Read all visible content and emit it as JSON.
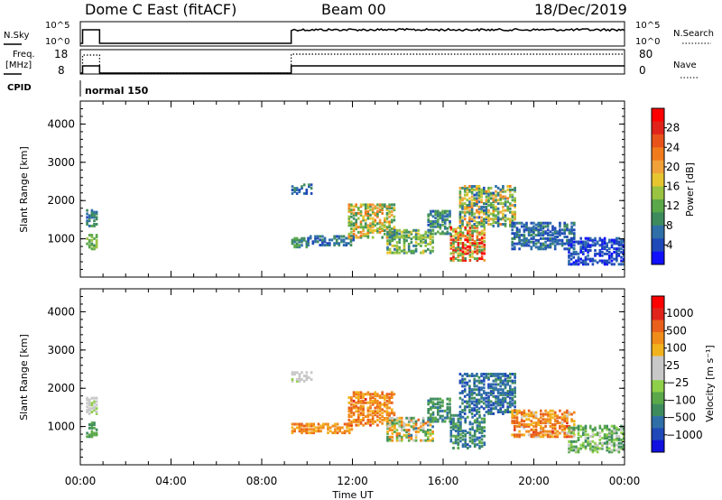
{
  "header": {
    "title_left": "Dome C East (fitACF)",
    "title_mid": "Beam 00",
    "title_right": "18/Dec/2019"
  },
  "status_panels": {
    "nsky": {
      "label": "N.Sky",
      "right_label": "N.Search",
      "ticks": [
        "10^5",
        "10^0"
      ],
      "right_ticks": [
        "10^5",
        "10^0"
      ]
    },
    "freq": {
      "label_line1": "Freq.",
      "label_line2": "[MHz]",
      "ticks": [
        "18",
        "8"
      ],
      "right_label": "Nave",
      "right_ticks": [
        "80",
        "0"
      ]
    },
    "cpid": {
      "label": "CPID",
      "mode_text": "normal 150"
    }
  },
  "chart_data": [
    {
      "type": "heatmap",
      "name": "power",
      "ylabel": "Slant Range [km]",
      "yticks": [
        "1000",
        "2000",
        "3000",
        "4000"
      ],
      "ylim": [
        0,
        4600
      ],
      "xlim_hours": [
        0,
        24
      ],
      "colorbar": {
        "label": "Power [dB]",
        "ticks": [
          "4",
          "8",
          "12",
          "16",
          "20",
          "24",
          "28"
        ],
        "colors": [
          "#1010ff",
          "#1f49b8",
          "#2f6fa8",
          "#3e8c5e",
          "#5aa84a",
          "#99c341",
          "#e6c531",
          "#f0a13a",
          "#f07b1d",
          "#e8521b",
          "#e0231b",
          "#ff0000"
        ]
      },
      "echo_regions": [
        {
          "t0": 0.25,
          "t1": 0.7,
          "r0": 1300,
          "r1": 1750,
          "level": [
            0.15,
            0.35
          ]
        },
        {
          "t0": 0.25,
          "t1": 0.75,
          "r0": 700,
          "r1": 1100,
          "level": [
            0.25,
            0.5
          ]
        },
        {
          "t0": 9.3,
          "t1": 10.2,
          "r0": 2150,
          "r1": 2400,
          "level": [
            0.1,
            0.3
          ]
        },
        {
          "t0": 9.3,
          "t1": 10.0,
          "r0": 750,
          "r1": 1000,
          "level": [
            0.2,
            0.4
          ]
        },
        {
          "t0": 10.0,
          "t1": 12.0,
          "r0": 800,
          "r1": 1050,
          "level": [
            0.1,
            0.3
          ]
        },
        {
          "t0": 11.8,
          "t1": 13.8,
          "r0": 1000,
          "r1": 1900,
          "level": [
            0.25,
            0.75
          ]
        },
        {
          "t0": 13.5,
          "t1": 15.5,
          "r0": 600,
          "r1": 1200,
          "level": [
            0.2,
            0.55
          ]
        },
        {
          "t0": 15.3,
          "t1": 16.3,
          "r0": 1100,
          "r1": 1700,
          "level": [
            0.15,
            0.4
          ]
        },
        {
          "t0": 16.3,
          "t1": 17.8,
          "r0": 400,
          "r1": 1300,
          "level": [
            0.3,
            1.0
          ]
        },
        {
          "t0": 16.7,
          "t1": 19.2,
          "r0": 1300,
          "r1": 2350,
          "level": [
            0.15,
            0.7
          ]
        },
        {
          "t0": 19.0,
          "t1": 21.8,
          "r0": 700,
          "r1": 1400,
          "level": [
            0.1,
            0.3
          ]
        },
        {
          "t0": 21.5,
          "t1": 24.0,
          "r0": 300,
          "r1": 1000,
          "level": [
            0.05,
            0.2
          ]
        }
      ]
    },
    {
      "type": "heatmap",
      "name": "velocity",
      "ylabel": "Slant Range [km]",
      "yticks": [
        "1000",
        "2000",
        "3000",
        "4000"
      ],
      "ylim": [
        0,
        4600
      ],
      "xlim_hours": [
        0,
        24
      ],
      "colorbar": {
        "label": "Velocity  [m s⁻¹]",
        "ticks": [
          "1000",
          "500",
          "100",
          "25",
          "−25",
          "−100",
          "−500",
          "−1000"
        ],
        "colors": [
          "#1010e0",
          "#1f49b8",
          "#2f6fa8",
          "#3e8c5e",
          "#5aa84a",
          "#8fd04a",
          "#c8c8c8",
          "#c8c8c8",
          "#f2b21d",
          "#f08c1a",
          "#e8601b",
          "#e0231b",
          "#ff0000"
        ]
      },
      "echo_regions": [
        {
          "t0": 0.25,
          "t1": 0.7,
          "r0": 1300,
          "r1": 1750,
          "level": [
            0.45,
            0.5
          ]
        },
        {
          "t0": 0.25,
          "t1": 0.75,
          "r0": 700,
          "r1": 1100,
          "level": [
            0.25,
            0.35
          ]
        },
        {
          "t0": 9.3,
          "t1": 10.2,
          "r0": 2150,
          "r1": 2400,
          "level": [
            0.45,
            0.55
          ]
        },
        {
          "t0": 9.3,
          "t1": 12.0,
          "r0": 800,
          "r1": 1050,
          "level": [
            0.65,
            0.8
          ]
        },
        {
          "t0": 11.8,
          "t1": 13.8,
          "r0": 1000,
          "r1": 1900,
          "level": [
            0.65,
            0.85
          ]
        },
        {
          "t0": 13.5,
          "t1": 15.5,
          "r0": 600,
          "r1": 1200,
          "level": [
            0.2,
            0.8
          ]
        },
        {
          "t0": 15.3,
          "t1": 16.3,
          "r0": 1100,
          "r1": 1700,
          "level": [
            0.2,
            0.35
          ]
        },
        {
          "t0": 16.3,
          "t1": 17.8,
          "r0": 400,
          "r1": 1300,
          "level": [
            0.15,
            0.35
          ]
        },
        {
          "t0": 16.7,
          "t1": 19.2,
          "r0": 1300,
          "r1": 2350,
          "level": [
            0.1,
            0.3
          ]
        },
        {
          "t0": 19.0,
          "t1": 21.8,
          "r0": 700,
          "r1": 1400,
          "level": [
            0.6,
            0.85
          ]
        },
        {
          "t0": 21.5,
          "t1": 24.0,
          "r0": 300,
          "r1": 1000,
          "level": [
            0.25,
            0.5
          ]
        }
      ]
    }
  ],
  "x_axis": {
    "ticks": [
      "00:00",
      "04:00",
      "08:00",
      "12:00",
      "16:00",
      "20:00",
      "00:00"
    ],
    "label": "Time UT"
  }
}
